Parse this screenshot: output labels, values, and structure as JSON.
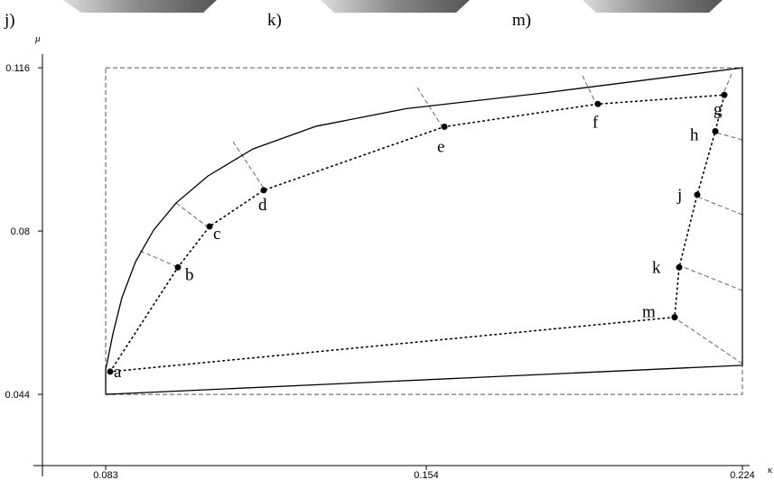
{
  "chart_data": {
    "type": "scatter",
    "panel_labels": [
      "j)",
      "k)",
      "m)"
    ],
    "x_label": "κ",
    "y_label": "μ",
    "point_labels": [
      "a",
      "b",
      "c",
      "d",
      "e",
      "f",
      "g",
      "h",
      "j",
      "k",
      "m"
    ],
    "x": [
      0.084,
      0.099,
      0.106,
      0.118,
      0.158,
      0.192,
      0.22,
      0.218,
      0.214,
      0.21,
      0.209
    ],
    "y": [
      0.049,
      0.072,
      0.081,
      0.089,
      0.103,
      0.108,
      0.11,
      0.102,
      0.088,
      0.072,
      0.061
    ],
    "color": "#000000",
    "lines": [
      {
        "style": "solid",
        "x": [
          0.083,
          0.083,
          0.0846,
          0.0866,
          0.0896,
          0.0936,
          0.0986,
          0.1056,
          0.1156,
          0.1296,
          0.1496,
          0.1796,
          0.224,
          0.224,
          0.083
        ],
        "y": [
          0.044,
          0.0494,
          0.0573,
          0.0653,
          0.0732,
          0.0802,
          0.0862,
          0.0921,
          0.0981,
          0.1031,
          0.107,
          0.1104,
          0.116,
          0.0504,
          0.044
        ]
      }
    ],
    "xlim": [
      0.069,
      0.2256
    ],
    "ylim": [
      0.0283,
      0.119
    ],
    "xticks": [
      0.083,
      0.154,
      0.224
    ],
    "yticks": [
      0.044,
      0.08,
      0.116
    ]
  }
}
